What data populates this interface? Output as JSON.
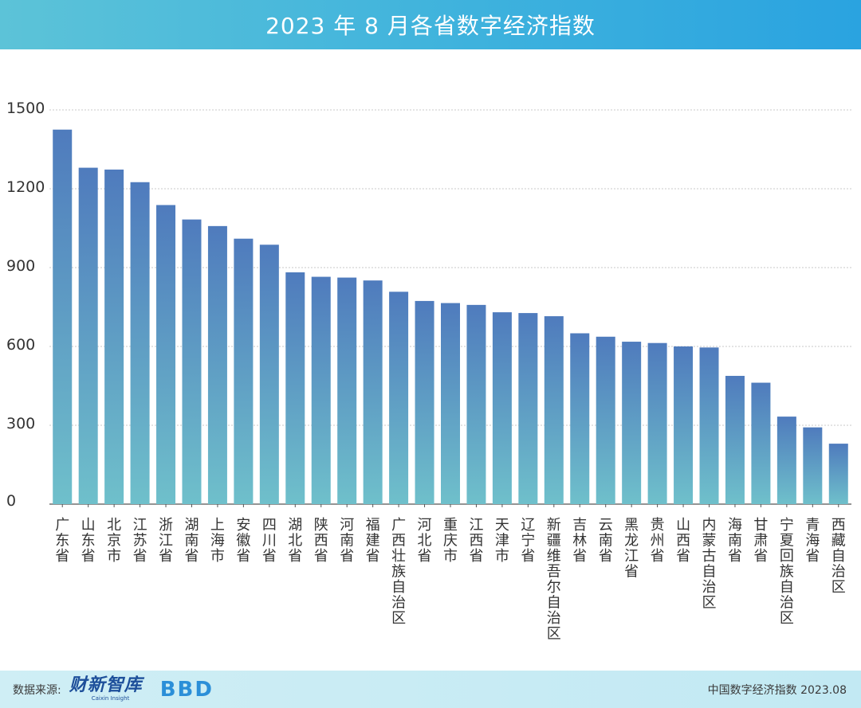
{
  "header": {
    "title": "2023 年 8 月各省数字经济指数"
  },
  "footer": {
    "source_label": "数据来源:",
    "logo1_cn": "财新智库",
    "logo1_en": "Caixin Insight",
    "logo2": "BBD",
    "right_text": "中国数字经济指数 2023.08"
  },
  "colors": {
    "bar_top": "#4f7bbd",
    "bar_bottom": "#6fc0cb",
    "grid": "#c8c8c8",
    "axis": "#555555",
    "text": "#333333"
  },
  "chart_data": {
    "type": "bar",
    "title": "2023 年 8 月各省数字经济指数",
    "xlabel": "",
    "ylabel": "",
    "ylim": [
      0,
      1500
    ],
    "yticks": [
      "0",
      "300",
      "600",
      "900",
      "1200",
      "1500"
    ],
    "grid": true,
    "categories": [
      "广东省",
      "山东省",
      "北京市",
      "江苏省",
      "浙江省",
      "湖南省",
      "上海市",
      "安徽省",
      "四川省",
      "湖北省",
      "陕西省",
      "河南省",
      "福建省",
      "广西壮族自治区",
      "河北省",
      "重庆市",
      "江西省",
      "天津市",
      "辽宁省",
      "新疆维吾尔自治区",
      "吉林省",
      "云南省",
      "黑龙江省",
      "贵州省",
      "山西省",
      "内蒙古自治区",
      "海南省",
      "甘肃省",
      "宁夏回族自治区",
      "青海省",
      "西藏自治区"
    ],
    "values": [
      1425,
      1280,
      1273,
      1225,
      1138,
      1083,
      1058,
      1010,
      987,
      882,
      865,
      862,
      851,
      808,
      773,
      765,
      758,
      730,
      727,
      715,
      650,
      637,
      618,
      613,
      600,
      596,
      488,
      462,
      333,
      292,
      230
    ]
  }
}
